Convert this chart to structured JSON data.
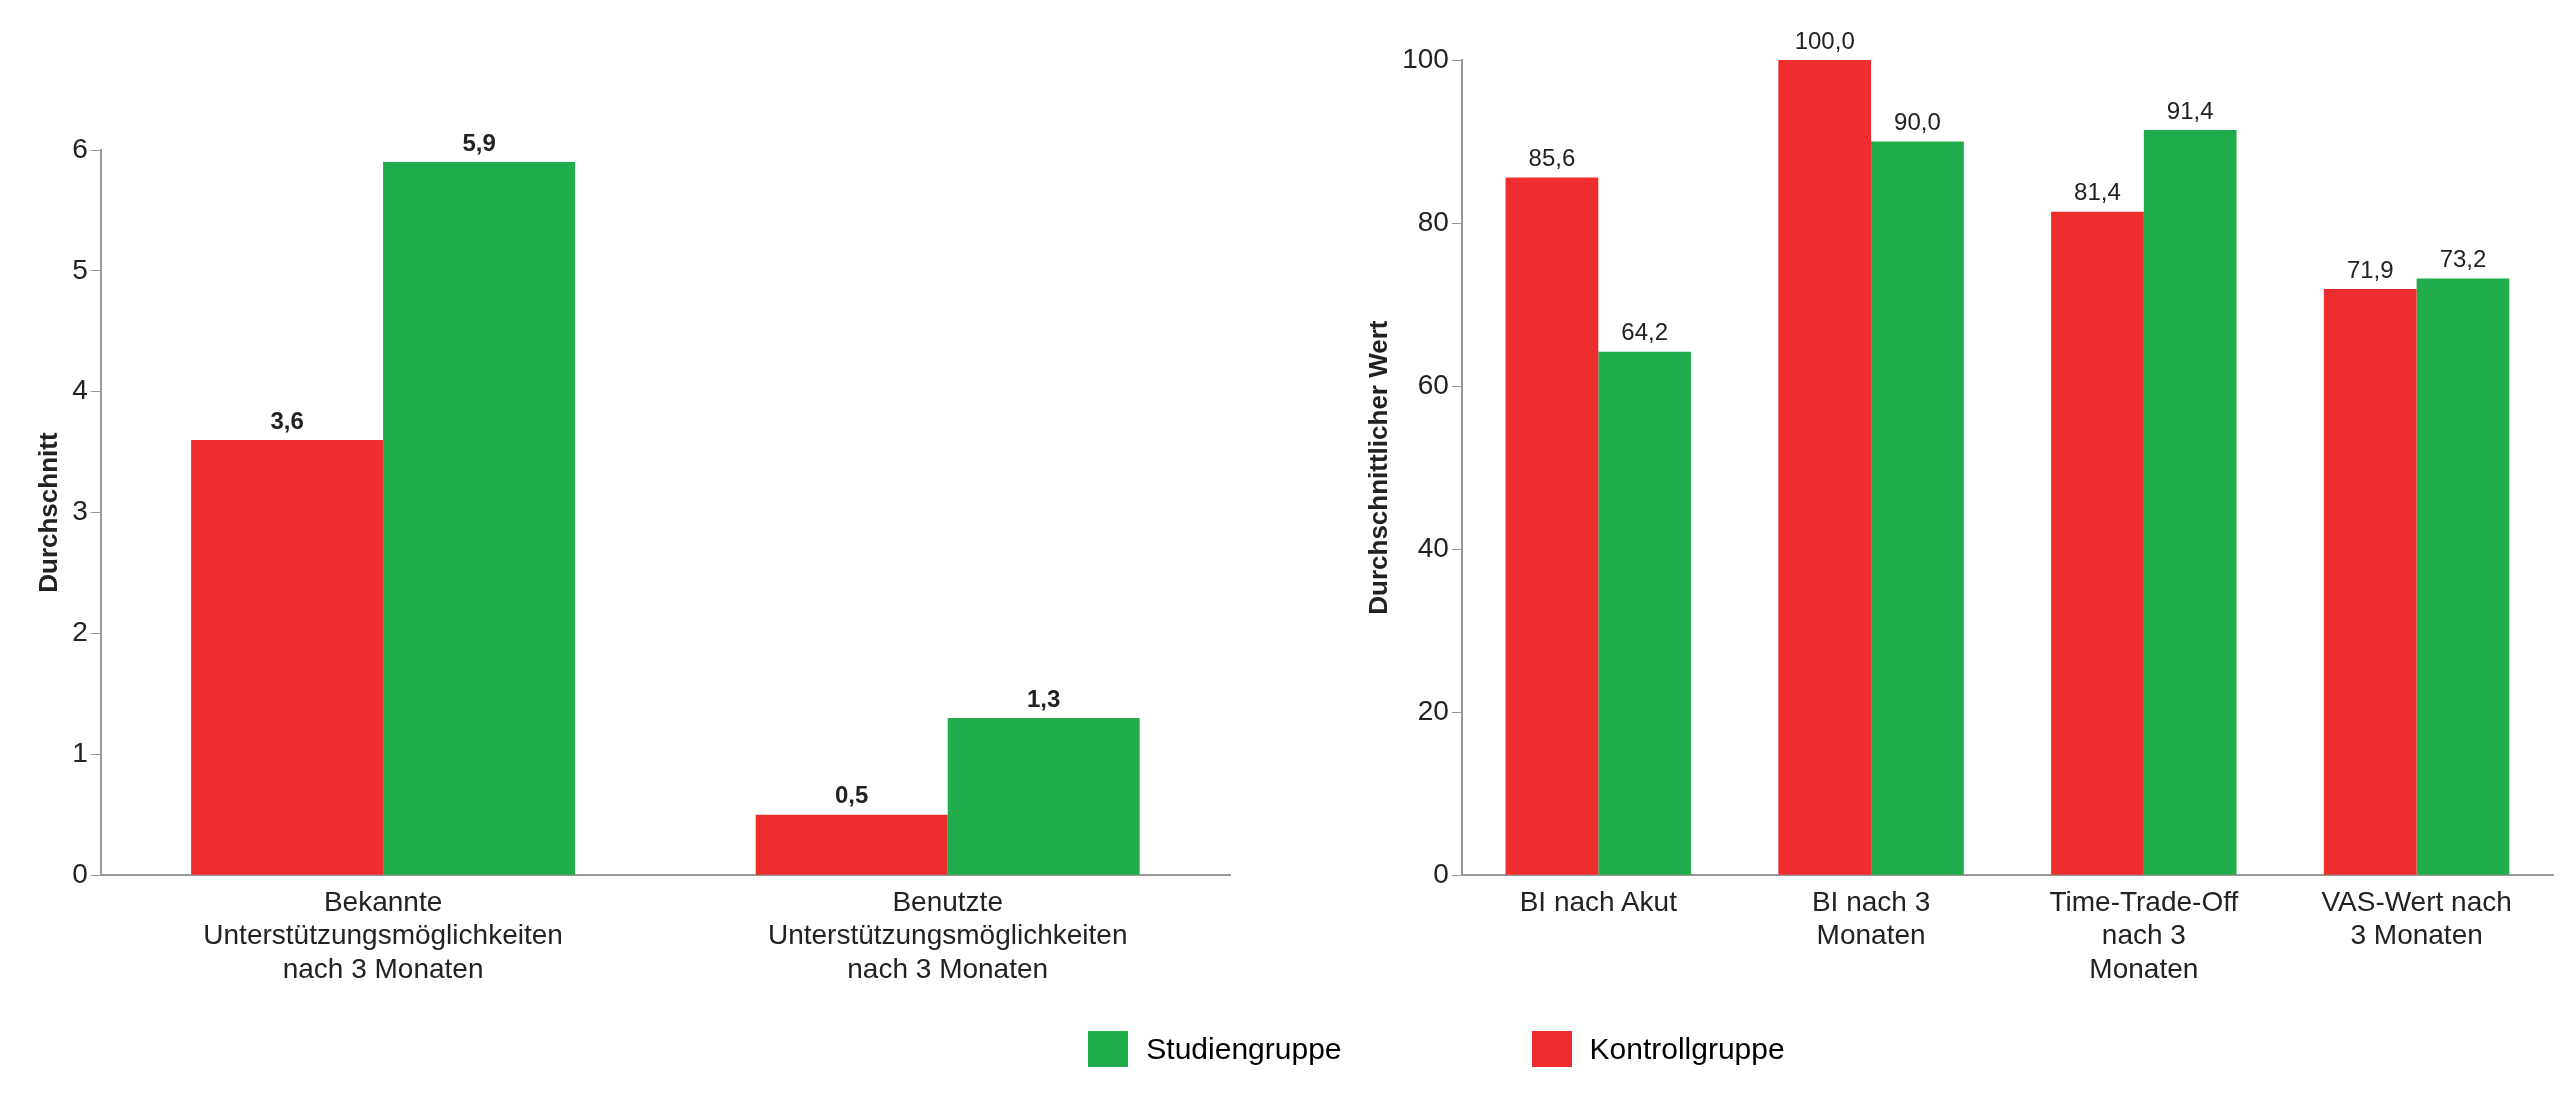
{
  "chart_data": [
    {
      "type": "bar",
      "ylabel": "Durchschnitt",
      "categories": [
        "Bekannte Unterstützungsmöglichkeiten nach 3 Monaten",
        "Benutzte Unterstützungsmöglichkeiten nach 3 Monaten"
      ],
      "series": [
        {
          "name": "Kontrollgruppe",
          "color": "#ee2e2e",
          "values": [
            3.6,
            0.5
          ],
          "value_labels": [
            "3,6",
            "0,5"
          ]
        },
        {
          "name": "Studiengruppe",
          "color": "#21ad4b",
          "values": [
            5.9,
            1.3
          ],
          "value_labels": [
            "5,9",
            "1,3"
          ]
        }
      ],
      "ylim": [
        0,
        6
      ],
      "yticks": [
        0,
        1,
        2,
        3,
        4,
        5,
        6
      ],
      "grid": false,
      "legend": "bottom"
    },
    {
      "type": "bar",
      "ylabel": "Durchschnittlicher Wert",
      "categories": [
        "BI nach Akut",
        "BI nach 3 Monaten",
        "Time-Trade-Off nach 3 Monaten",
        "VAS-Wert nach 3 Monaten"
      ],
      "series": [
        {
          "color": "#ee2e2e",
          "values": [
            85.6,
            100.0,
            81.4,
            71.9
          ],
          "value_labels": [
            "85,6",
            "100,0",
            "81,4",
            "71,9"
          ]
        },
        {
          "color": "#21ad4b",
          "values": [
            64.2,
            90.0,
            91.4,
            73.2
          ],
          "value_labels": [
            "64,2",
            "90,0",
            "91,4",
            "73,2"
          ]
        }
      ],
      "ylim": [
        0,
        100
      ],
      "yticks": [
        0,
        20,
        40,
        60,
        80,
        100
      ],
      "grid": false
    }
  ]
}
